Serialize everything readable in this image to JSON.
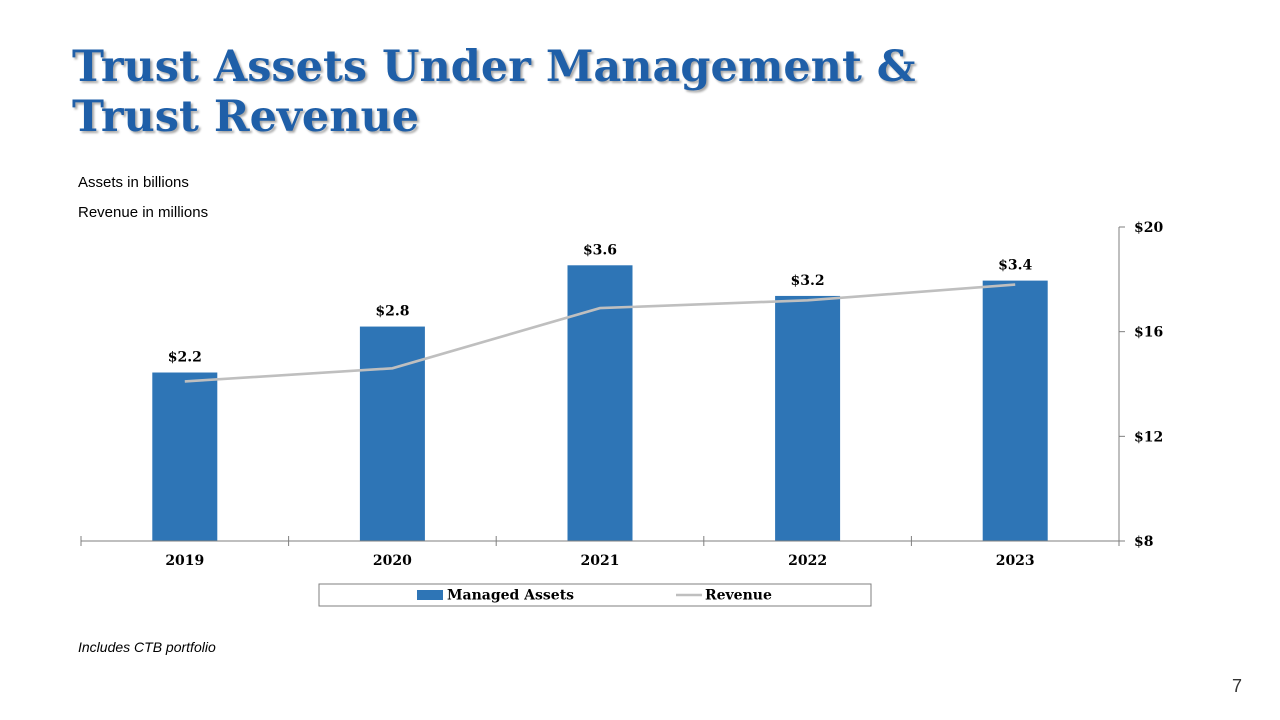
{
  "title": {
    "line1": "Trust Assets Under Management &",
    "line2": "Trust Revenue"
  },
  "notes": {
    "assets": "Assets in billions",
    "revenue": "Revenue in millions"
  },
  "footnote": "Includes CTB portfolio",
  "page_number": "7",
  "colors": {
    "title": "#1f5fa8",
    "bar": "#2e75b6",
    "line": "#bfbfbf",
    "axis": "#7f7f7f"
  },
  "chart_data": {
    "type": "bar",
    "categories": [
      "2019",
      "2020",
      "2021",
      "2022",
      "2023"
    ],
    "series": [
      {
        "name": "Managed Assets",
        "type": "bar",
        "axis": "left",
        "values": [
          2.2,
          2.8,
          3.6,
          3.2,
          3.4
        ],
        "labels": [
          "$2.2",
          "$2.8",
          "$3.6",
          "$3.2",
          "$3.4"
        ]
      },
      {
        "name": "Revenue",
        "type": "line",
        "axis": "right",
        "values": [
          14.1,
          14.6,
          16.9,
          17.2,
          17.8
        ]
      }
    ],
    "y_left": {
      "min": 0,
      "max": 4.1
    },
    "y_right": {
      "min": 8,
      "max": 20,
      "ticks": [
        8,
        12,
        16,
        20
      ],
      "tick_labels": [
        "$8",
        "$12",
        "$16",
        "$20"
      ]
    },
    "legend": {
      "position": "bottom",
      "entries": [
        "Managed Assets",
        "Revenue"
      ]
    },
    "grid": false
  }
}
